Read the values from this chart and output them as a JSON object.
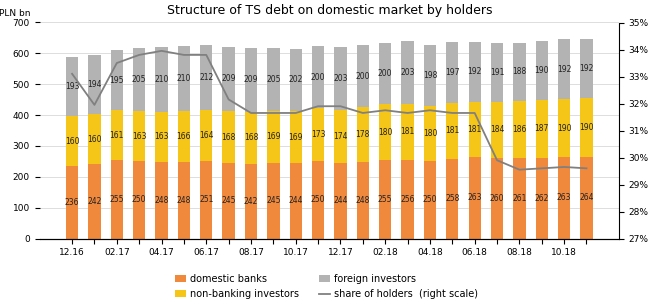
{
  "title": "Structure of TS debt on domestic market by holders",
  "ylabel_left": "PLN bn",
  "x_labels": [
    "12.16",
    "",
    "02.17",
    "",
    "04.17",
    "",
    "06.17",
    "",
    "08.17",
    "",
    "10.17",
    "",
    "12.17",
    "",
    "02.18",
    "",
    "04.18",
    "",
    "06.18",
    "",
    "08.18",
    "",
    "10.18",
    ""
  ],
  "domestic_banks": [
    236,
    242,
    255,
    250,
    248,
    248,
    251,
    245,
    242,
    245,
    244,
    250,
    244,
    248,
    255,
    256,
    250,
    258,
    263,
    260,
    261,
    262,
    263,
    264
  ],
  "non_banking": [
    160,
    160,
    161,
    163,
    163,
    166,
    164,
    168,
    168,
    169,
    169,
    173,
    174,
    178,
    180,
    181,
    180,
    181,
    181,
    184,
    186,
    187,
    190,
    190
  ],
  "foreign": [
    193,
    194,
    195,
    205,
    210,
    210,
    212,
    209,
    209,
    205,
    202,
    200,
    203,
    200,
    200,
    203,
    198,
    197,
    192,
    191,
    188,
    190,
    192,
    192
  ],
  "share": [
    0.331,
    0.3195,
    0.335,
    0.338,
    0.3395,
    0.338,
    0.338,
    0.3215,
    0.3165,
    0.3165,
    0.3165,
    0.319,
    0.319,
    0.3165,
    0.3175,
    0.3165,
    0.3175,
    0.3165,
    0.3165,
    0.299,
    0.2955,
    0.296,
    0.2965,
    0.296
  ],
  "color_domestic": "#f0893c",
  "color_non_banking": "#f5c518",
  "color_foreign": "#b3b3b3",
  "color_line": "#808080",
  "ylim_left": [
    0,
    700
  ],
  "ylim_right": [
    0.27,
    0.35
  ],
  "yticks_left": [
    0,
    100,
    200,
    300,
    400,
    500,
    600,
    700
  ],
  "yticks_right": [
    0.27,
    0.28,
    0.29,
    0.3,
    0.31,
    0.32,
    0.33,
    0.34,
    0.35
  ],
  "bar_width": 0.55,
  "label_fontsize": 5.5,
  "tick_fontsize": 6.5,
  "title_fontsize": 9,
  "legend_fontsize": 7
}
